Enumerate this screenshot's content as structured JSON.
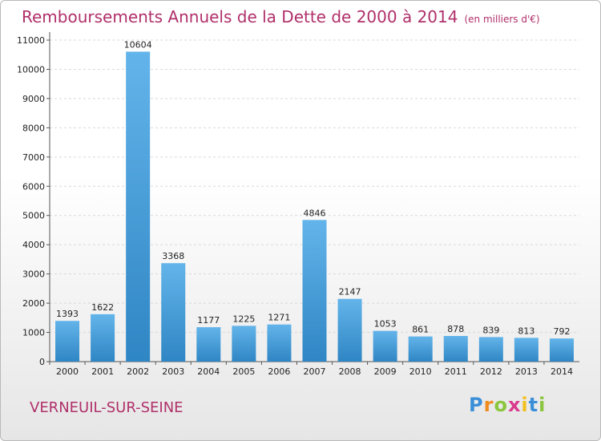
{
  "chart_data": {
    "type": "bar",
    "title": "Remboursements Annuels de la Dette de 2000 à 2014",
    "unit_note": "(en milliers d'€)",
    "categories": [
      "2000",
      "2001",
      "2002",
      "2003",
      "2004",
      "2005",
      "2006",
      "2007",
      "2008",
      "2009",
      "2010",
      "2011",
      "2012",
      "2013",
      "2014"
    ],
    "values": [
      1393,
      1622,
      10604,
      3368,
      1177,
      1225,
      1271,
      4846,
      2147,
      1053,
      861,
      878,
      839,
      813,
      792
    ],
    "ylim": [
      0,
      11000
    ],
    "yticks": [
      0,
      1000,
      2000,
      3000,
      4000,
      5000,
      6000,
      7000,
      8000,
      9000,
      10000,
      11000
    ],
    "grid": true,
    "bar_color_top": "#63b4ea",
    "bar_color_bottom": "#2f86c4"
  },
  "footer": {
    "city": "VERNEUIL-SUR-SEINE",
    "logo": [
      "P",
      "r",
      "o",
      "x",
      "i",
      "t",
      "i"
    ],
    "logo_colors": [
      "#3a8fd8",
      "#f08c1e",
      "#8cc63f",
      "#d93a8c",
      "#f2c01e",
      "#3a8fd8",
      "#8cc63f"
    ]
  }
}
